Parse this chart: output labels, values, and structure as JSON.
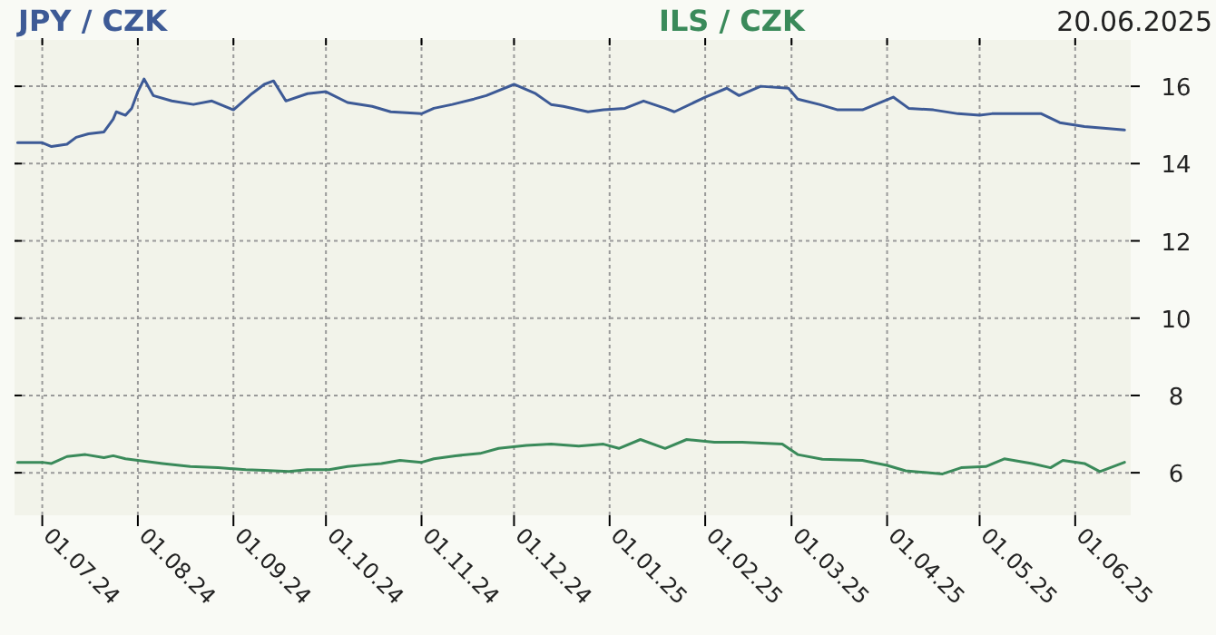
{
  "chart_data": {
    "type": "line",
    "annotations": [
      "20.06.2025"
    ],
    "legend": "top",
    "grid": true,
    "line_style": "solid",
    "xlim": [
      "2024-06-22",
      "2025-06-19"
    ],
    "xticks": [
      {
        "value": "2024-07-01",
        "label": "01.07.24"
      },
      {
        "value": "2024-08-01",
        "label": "01.08.24"
      },
      {
        "value": "2024-09-01",
        "label": "01.09.24"
      },
      {
        "value": "2024-10-01",
        "label": "01.10.24"
      },
      {
        "value": "2024-11-01",
        "label": "01.11.24"
      },
      {
        "value": "2024-12-01",
        "label": "01.12.24"
      },
      {
        "value": "2025-01-01",
        "label": "01.01.25"
      },
      {
        "value": "2025-02-01",
        "label": "01.02.25"
      },
      {
        "value": "2025-03-01",
        "label": "01.03.25"
      },
      {
        "value": "2025-04-01",
        "label": "01.04.25"
      },
      {
        "value": "2025-05-01",
        "label": "01.05.25"
      },
      {
        "value": "2025-06-01",
        "label": "01.06.25"
      }
    ],
    "ylim": [
      4.9,
      17.2
    ],
    "yticks": [
      6,
      8,
      10,
      12,
      14,
      16
    ],
    "series": [
      {
        "name": "JPY / CZK",
        "color": "#3d5a96",
        "x": [
          "2024-06-23",
          "2024-07-01",
          "2024-07-04",
          "2024-07-09",
          "2024-07-12",
          "2024-07-16",
          "2024-07-21",
          "2024-07-24",
          "2024-07-25",
          "2024-07-28",
          "2024-07-30",
          "2024-08-01",
          "2024-08-03",
          "2024-08-06",
          "2024-08-12",
          "2024-08-19",
          "2024-08-25",
          "2024-09-01",
          "2024-09-07",
          "2024-09-11",
          "2024-09-14",
          "2024-09-18",
          "2024-09-25",
          "2024-10-01",
          "2024-10-08",
          "2024-10-16",
          "2024-10-22",
          "2024-11-01",
          "2024-11-05",
          "2024-11-11",
          "2024-11-18",
          "2024-11-22",
          "2024-12-01",
          "2024-12-08",
          "2024-12-13",
          "2024-12-17",
          "2024-12-25",
          "2024-12-30",
          "2025-01-06",
          "2025-01-12",
          "2025-01-19",
          "2025-01-22",
          "2025-02-01",
          "2025-02-08",
          "2025-02-12",
          "2025-02-19",
          "2025-02-28",
          "2025-03-03",
          "2025-03-10",
          "2025-03-16",
          "2025-03-24",
          "2025-04-03",
          "2025-04-08",
          "2025-04-16",
          "2025-04-24",
          "2025-05-01",
          "2025-05-05",
          "2025-05-12",
          "2025-05-21",
          "2025-05-27",
          "2025-06-04",
          "2025-06-11",
          "2025-06-17"
        ],
        "values": [
          14.54,
          14.54,
          14.44,
          14.5,
          14.68,
          14.77,
          14.82,
          15.15,
          15.34,
          15.25,
          15.43,
          15.86,
          16.19,
          15.76,
          15.62,
          15.53,
          15.62,
          15.39,
          15.81,
          16.05,
          16.14,
          15.62,
          15.81,
          15.86,
          15.58,
          15.48,
          15.34,
          15.29,
          15.43,
          15.53,
          15.67,
          15.76,
          16.05,
          15.81,
          15.53,
          15.48,
          15.34,
          15.39,
          15.43,
          15.62,
          15.43,
          15.34,
          15.72,
          15.95,
          15.76,
          16.0,
          15.95,
          15.67,
          15.53,
          15.39,
          15.39,
          15.72,
          15.43,
          15.39,
          15.29,
          15.25,
          15.29,
          15.29,
          15.29,
          15.06,
          14.96,
          14.91,
          14.87
        ]
      },
      {
        "name": "ILS / CZK",
        "color": "#3a8a5a",
        "x": [
          "2024-06-23",
          "2024-07-01",
          "2024-07-04",
          "2024-07-09",
          "2024-07-15",
          "2024-07-21",
          "2024-07-24",
          "2024-07-28",
          "2024-08-01",
          "2024-08-09",
          "2024-08-18",
          "2024-08-27",
          "2024-09-05",
          "2024-09-11",
          "2024-09-19",
          "2024-09-25",
          "2024-10-02",
          "2024-10-08",
          "2024-10-13",
          "2024-10-19",
          "2024-10-25",
          "2024-11-01",
          "2024-11-05",
          "2024-11-12",
          "2024-11-20",
          "2024-11-26",
          "2024-12-05",
          "2024-12-13",
          "2024-12-22",
          "2024-12-30",
          "2025-01-04",
          "2025-01-11",
          "2025-01-19",
          "2025-01-26",
          "2025-02-04",
          "2025-02-13",
          "2025-02-26",
          "2025-03-03",
          "2025-03-11",
          "2025-03-24",
          "2025-04-01",
          "2025-04-07",
          "2025-04-19",
          "2025-04-25",
          "2025-05-03",
          "2025-05-09",
          "2025-05-18",
          "2025-05-24",
          "2025-05-28",
          "2025-06-04",
          "2025-06-09",
          "2025-06-17"
        ],
        "values": [
          6.27,
          6.27,
          6.24,
          6.42,
          6.47,
          6.39,
          6.44,
          6.36,
          6.32,
          6.24,
          6.16,
          6.13,
          6.08,
          6.06,
          6.03,
          6.08,
          6.08,
          6.16,
          6.2,
          6.24,
          6.32,
          6.27,
          6.36,
          6.44,
          6.5,
          6.63,
          6.71,
          6.74,
          6.69,
          6.74,
          6.63,
          6.86,
          6.63,
          6.86,
          6.79,
          6.79,
          6.74,
          6.47,
          6.35,
          6.32,
          6.19,
          6.05,
          5.97,
          6.13,
          6.16,
          6.36,
          6.24,
          6.13,
          6.32,
          6.24,
          6.03,
          6.27
        ]
      }
    ]
  }
}
